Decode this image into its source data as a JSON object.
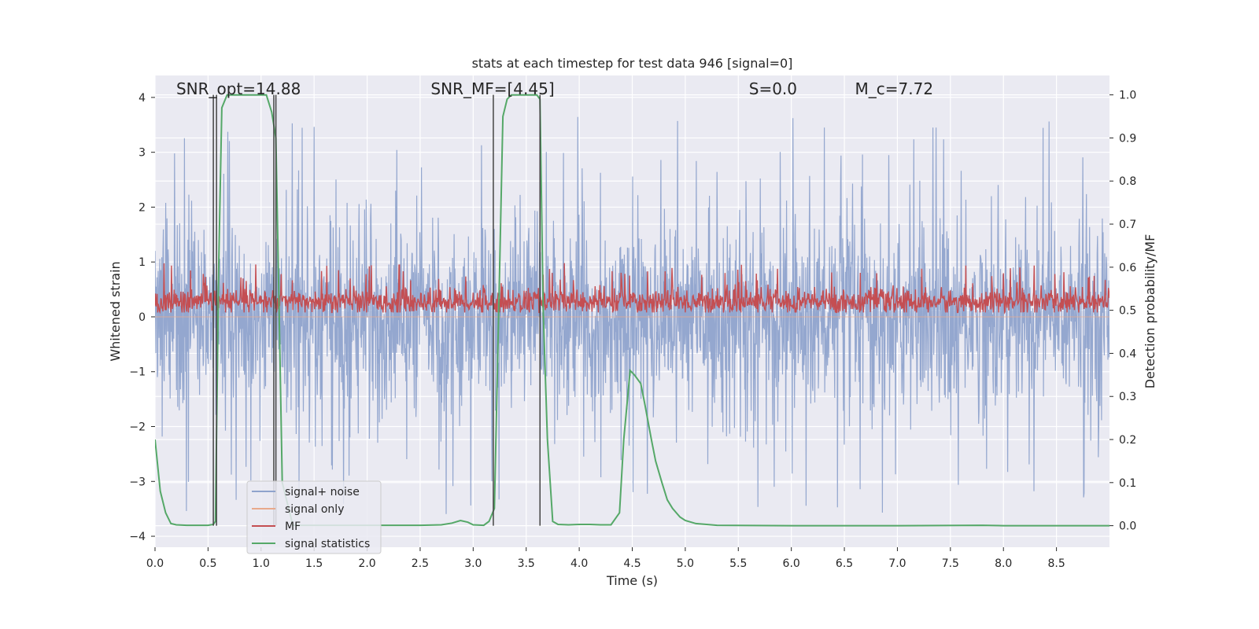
{
  "chart_data": {
    "type": "line",
    "title": "stats at each timestep for test data 946 [signal=0]",
    "xlabel": "Time (s)",
    "ylabel": "Whitened strain",
    "ylabel_right": "Detection probability/MF",
    "xlim": [
      0.0,
      9.0
    ],
    "ylim": [
      -4.2,
      4.4
    ],
    "ylim_right": [
      -0.05,
      1.045
    ],
    "x_ticks": [
      0.0,
      0.5,
      1.0,
      1.5,
      2.0,
      2.5,
      3.0,
      3.5,
      4.0,
      4.5,
      5.0,
      5.5,
      6.0,
      6.5,
      7.0,
      7.5,
      8.0,
      8.5
    ],
    "x_tick_labels": [
      "0.0",
      "0.5",
      "1.0",
      "1.5",
      "2.0",
      "2.5",
      "3.0",
      "3.5",
      "4.0",
      "4.5",
      "5.0",
      "5.5",
      "6.0",
      "6.5",
      "7.0",
      "7.5",
      "8.0",
      "8.5"
    ],
    "y_ticks": [
      4,
      3,
      2,
      1,
      0,
      -1,
      -2,
      -3,
      -4
    ],
    "y_tick_labels": [
      "4",
      "3",
      "2",
      "1",
      "0",
      "−1",
      "−2",
      "−3",
      "−4"
    ],
    "y_right_ticks": [
      1.0,
      0.9,
      0.8,
      0.7,
      0.6,
      0.5,
      0.4,
      0.3,
      0.2,
      0.1,
      0.0
    ],
    "y_right_tick_labels": [
      "1.0",
      "0.9",
      "0.8",
      "0.7",
      "0.6",
      "0.5",
      "0.4",
      "0.3",
      "0.2",
      "0.1",
      "0.0"
    ],
    "grid": true,
    "legend_position": "lower-left",
    "annotations": [
      {
        "id": "snr-opt",
        "text": "SNR_opt=14.88",
        "x": 0.2,
        "y": 4.1
      },
      {
        "id": "snr-mf",
        "text": "SNR_MF=[4.45]",
        "x": 2.6,
        "y": 4.1
      },
      {
        "id": "s-value",
        "text": "S=0.0",
        "x": 5.6,
        "y": 4.1
      },
      {
        "id": "mc-value",
        "text": "M_c=7.72",
        "x": 6.6,
        "y": 4.1
      }
    ],
    "vertical_markers": [
      {
        "x": 0.55,
        "y_right_range": [
          0.0,
          1.0
        ]
      },
      {
        "x": 0.58,
        "y_right_range": [
          0.0,
          1.0
        ]
      },
      {
        "x": 1.12,
        "y_right_range": [
          0.0,
          1.0
        ]
      },
      {
        "x": 1.14,
        "y_right_range": [
          0.0,
          1.0
        ]
      },
      {
        "x": 3.19,
        "y_right_range": [
          0.0,
          1.0
        ]
      },
      {
        "x": 3.63,
        "y_right_range": [
          0.0,
          1.0
        ]
      }
    ],
    "series": [
      {
        "name": "signal+ noise",
        "axis": "left",
        "color": "#8fa3cc",
        "kind": "dense-noise",
        "approx_envelope": {
          "typical_max": 1.6,
          "typical_min": -1.5,
          "peak_max": 3.65,
          "peak_min": -3.85
        }
      },
      {
        "name": "signal only",
        "axis": "left",
        "color": "#e8a98c",
        "kind": "flat",
        "values_note_x": [
          0.0,
          9.0
        ],
        "values": [
          0.0,
          0.0
        ]
      },
      {
        "name": "MF",
        "axis": "right",
        "color": "#c44e52",
        "kind": "dense-noise",
        "approx_envelope": {
          "typical_max": 0.56,
          "typical_min": 0.49,
          "peak_max": 0.61,
          "peak_min": 0.495
        }
      },
      {
        "name": "signal statistics",
        "axis": "right",
        "color": "#55a868",
        "kind": "line",
        "x": [
          0.0,
          0.05,
          0.1,
          0.15,
          0.2,
          0.3,
          0.4,
          0.5,
          0.55,
          0.57,
          0.6,
          0.63,
          0.68,
          0.75,
          0.85,
          1.0,
          1.05,
          1.1,
          1.14,
          1.17,
          1.2,
          1.3,
          1.5,
          2.0,
          2.5,
          2.7,
          2.8,
          2.88,
          2.95,
          3.0,
          3.1,
          3.15,
          3.2,
          3.25,
          3.28,
          3.32,
          3.36,
          3.4,
          3.5,
          3.6,
          3.63,
          3.66,
          3.7,
          3.75,
          3.8,
          3.9,
          4.0,
          4.1,
          4.2,
          4.3,
          4.38,
          4.42,
          4.48,
          4.52,
          4.58,
          4.62,
          4.68,
          4.72,
          4.78,
          4.83,
          4.88,
          4.95,
          5.0,
          5.1,
          5.3,
          6.0,
          7.0,
          7.8,
          8.0,
          9.0
        ],
        "values": [
          0.2,
          0.08,
          0.03,
          0.005,
          0.002,
          0.001,
          0.001,
          0.001,
          0.003,
          0.01,
          0.6,
          0.97,
          1.0,
          1.0,
          1.0,
          1.0,
          1.0,
          0.96,
          0.9,
          0.5,
          0.1,
          0.001,
          0.001,
          0.001,
          0.001,
          0.002,
          0.006,
          0.012,
          0.008,
          0.002,
          0.001,
          0.01,
          0.04,
          0.6,
          0.95,
          0.99,
          1.0,
          1.0,
          1.0,
          1.0,
          0.99,
          0.5,
          0.2,
          0.01,
          0.003,
          0.002,
          0.003,
          0.003,
          0.002,
          0.002,
          0.03,
          0.2,
          0.36,
          0.35,
          0.33,
          0.28,
          0.2,
          0.15,
          0.1,
          0.06,
          0.04,
          0.02,
          0.012,
          0.005,
          0.001,
          0.0,
          0.0,
          0.001,
          0.0,
          0.0
        ]
      }
    ],
    "colors": {
      "plot_background": "#eaeaf2",
      "grid": "#ffffff",
      "marker_line": "#444444"
    }
  }
}
